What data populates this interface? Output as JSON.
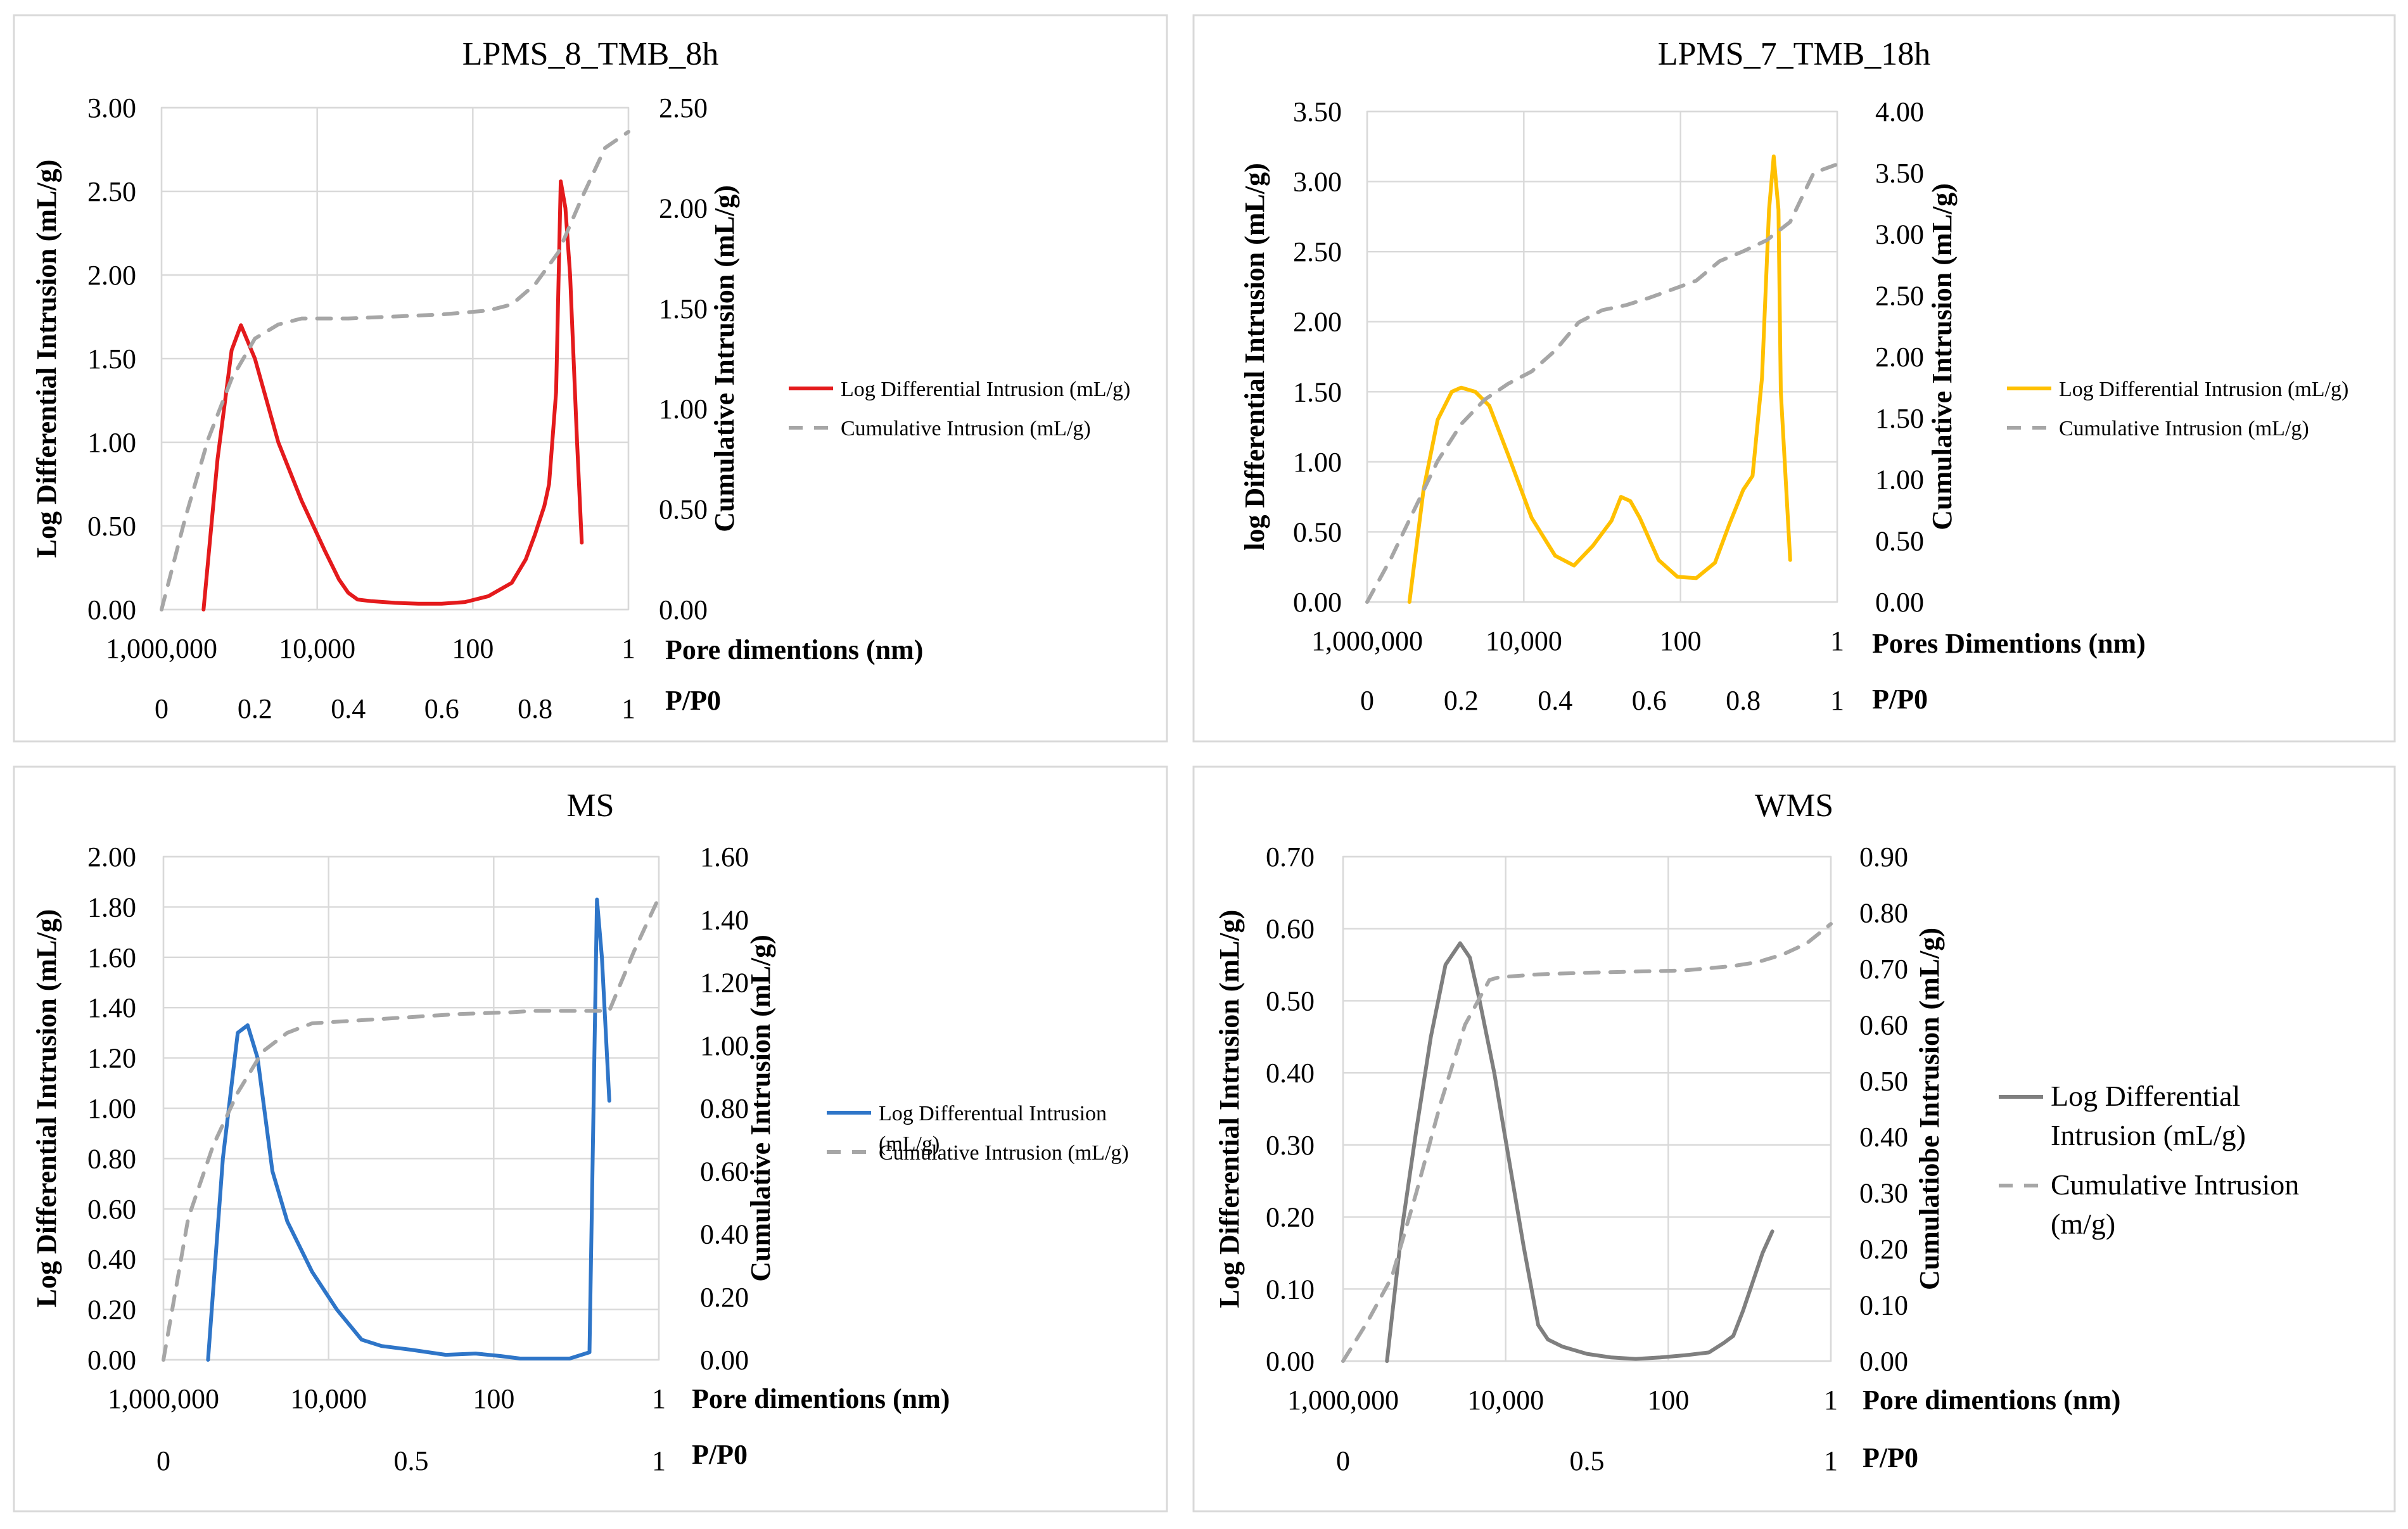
{
  "chart_data": [
    {
      "type": "line",
      "title": "LPMS_8_TMB_8h",
      "ylabel": "Log Differential Intrusion (mL/g)",
      "y2label": "Cumulative Intrusion (mL/g)",
      "xlabel_top": "Pore dimentions (nm)",
      "xlabel_bottom": "P/P0",
      "ylim": [
        0,
        3.0
      ],
      "y2lim": [
        0,
        2.5
      ],
      "y_ticks": [
        "0.00",
        "0.50",
        "1.00",
        "1.50",
        "2.00",
        "2.50",
        "3.00"
      ],
      "y2_ticks": [
        "0.00",
        "0.50",
        "1.00",
        "1.50",
        "2.00",
        "2.50"
      ],
      "x_top_ticks": [
        "1,000,000",
        "10,000",
        "100",
        "1"
      ],
      "x_bottom_ticks": [
        "0",
        "0.2",
        "0.4",
        "0.6",
        "0.8",
        "1"
      ],
      "x_bottom_positions": [
        0,
        0.2,
        0.4,
        0.6,
        0.8,
        1
      ],
      "legend_position": "right",
      "series": [
        {
          "name": "Log Differential Intrusion (mL/g)",
          "axis": "left",
          "color": "#e41a1c",
          "style": "solid",
          "x": [
            0.09,
            0.12,
            0.15,
            0.17,
            0.2,
            0.25,
            0.3,
            0.35,
            0.38,
            0.4,
            0.42,
            0.45,
            0.5,
            0.55,
            0.6,
            0.65,
            0.7,
            0.75,
            0.78,
            0.8,
            0.82,
            0.83,
            0.845,
            0.855,
            0.865,
            0.875,
            0.89,
            0.9
          ],
          "y": [
            0.0,
            0.9,
            1.55,
            1.7,
            1.5,
            1.0,
            0.65,
            0.35,
            0.18,
            0.1,
            0.06,
            0.05,
            0.04,
            0.035,
            0.035,
            0.045,
            0.08,
            0.16,
            0.3,
            0.45,
            0.62,
            0.75,
            1.3,
            2.56,
            2.4,
            2.0,
            1.0,
            0.4
          ]
        },
        {
          "name": "Cumulative Intrusion (mL/g)",
          "axis": "right",
          "color": "#a6a6a6",
          "style": "dashed",
          "x": [
            0.0,
            0.05,
            0.1,
            0.15,
            0.2,
            0.25,
            0.3,
            0.35,
            0.4,
            0.5,
            0.6,
            0.7,
            0.75,
            0.8,
            0.85,
            0.9,
            0.95,
            1.0
          ],
          "y": [
            0.0,
            0.45,
            0.85,
            1.15,
            1.35,
            1.42,
            1.45,
            1.45,
            1.45,
            1.46,
            1.47,
            1.49,
            1.52,
            1.62,
            1.78,
            2.05,
            2.3,
            2.38
          ]
        }
      ]
    },
    {
      "type": "line",
      "title": "LPMS_7_TMB_18h",
      "ylabel": "log Differential Intrusion (mL/g)",
      "y2label": "Cumulative Intrusion (mL/g)",
      "xlabel_top": "Pores Dimentions (nm)",
      "xlabel_bottom": "P/P0",
      "ylim": [
        0,
        3.5
      ],
      "y2lim": [
        0,
        4.0
      ],
      "y_ticks": [
        "0.00",
        "0.50",
        "1.00",
        "1.50",
        "2.00",
        "2.50",
        "3.00",
        "3.50"
      ],
      "y2_ticks": [
        "0.00",
        "0.50",
        "1.00",
        "1.50",
        "2.00",
        "2.50",
        "3.00",
        "3.50",
        "4.00"
      ],
      "x_top_ticks": [
        "1,000,000",
        "10,000",
        "100",
        "1"
      ],
      "x_bottom_ticks": [
        "0",
        "0.2",
        "0.4",
        "0.6",
        "0.8",
        "1"
      ],
      "x_bottom_positions": [
        0,
        0.2,
        0.4,
        0.6,
        0.8,
        1
      ],
      "legend_position": "right",
      "series": [
        {
          "name": "Log Differential Intrusion (mL/g)",
          "axis": "left",
          "color": "#ffc000",
          "style": "solid",
          "x": [
            0.09,
            0.12,
            0.15,
            0.18,
            0.2,
            0.23,
            0.26,
            0.3,
            0.35,
            0.4,
            0.44,
            0.48,
            0.52,
            0.54,
            0.56,
            0.58,
            0.62,
            0.66,
            0.7,
            0.74,
            0.77,
            0.8,
            0.82,
            0.84,
            0.855,
            0.865,
            0.875,
            0.88,
            0.9
          ],
          "y": [
            0.0,
            0.8,
            1.3,
            1.5,
            1.53,
            1.5,
            1.4,
            1.05,
            0.6,
            0.33,
            0.26,
            0.4,
            0.58,
            0.75,
            0.72,
            0.6,
            0.3,
            0.18,
            0.17,
            0.28,
            0.55,
            0.8,
            0.9,
            1.6,
            2.8,
            3.18,
            2.8,
            1.5,
            0.3
          ]
        },
        {
          "name": "Cumulative Intrusion (mL/g)",
          "axis": "right",
          "color": "#a6a6a6",
          "style": "dashed",
          "x": [
            0.0,
            0.05,
            0.1,
            0.15,
            0.2,
            0.25,
            0.3,
            0.35,
            0.4,
            0.45,
            0.5,
            0.55,
            0.6,
            0.65,
            0.7,
            0.75,
            0.8,
            0.85,
            0.9,
            0.95,
            1.0
          ],
          "y": [
            0.0,
            0.35,
            0.75,
            1.15,
            1.45,
            1.65,
            1.78,
            1.88,
            2.05,
            2.28,
            2.38,
            2.42,
            2.48,
            2.55,
            2.62,
            2.78,
            2.86,
            2.95,
            3.1,
            3.5,
            3.57
          ]
        }
      ]
    },
    {
      "type": "line",
      "title": "MS",
      "ylabel": "Log Differential Intrusion (mL/g)",
      "y2label": "Cumulative Intrusion (mL/g)",
      "xlabel_top": "Pore dimentions (nm)",
      "xlabel_bottom": "P/P0",
      "ylim": [
        0,
        2.0
      ],
      "y2lim": [
        0,
        1.6
      ],
      "y_ticks": [
        "0.00",
        "0.20",
        "0.40",
        "0.60",
        "0.80",
        "1.00",
        "1.20",
        "1.40",
        "1.60",
        "1.80",
        "2.00"
      ],
      "y2_ticks": [
        "0.00",
        "0.20",
        "0.40",
        "0.60",
        "0.80",
        "1.00",
        "1.20",
        "1.40",
        "1.60"
      ],
      "x_top_ticks": [
        "1,000,000",
        "10,000",
        "100",
        "1"
      ],
      "x_bottom_ticks": [
        "0",
        "0.5",
        "1"
      ],
      "x_bottom_positions": [
        0,
        0.5,
        1
      ],
      "legend_position": "right",
      "series": [
        {
          "name": "Log Differentual Intrusion (mL/g)",
          "axis": "left",
          "color": "#2e75c8",
          "style": "solid",
          "x": [
            0.09,
            0.12,
            0.15,
            0.17,
            0.19,
            0.22,
            0.25,
            0.3,
            0.35,
            0.4,
            0.44,
            0.5,
            0.57,
            0.63,
            0.68,
            0.72,
            0.75,
            0.82,
            0.86,
            0.875,
            0.885,
            0.9
          ],
          "y": [
            0.0,
            0.8,
            1.3,
            1.33,
            1.2,
            0.75,
            0.55,
            0.35,
            0.2,
            0.08,
            0.055,
            0.04,
            0.02,
            0.025,
            0.015,
            0.005,
            0.005,
            0.005,
            0.03,
            1.83,
            1.6,
            1.03
          ]
        },
        {
          "name": "Cumulative Intrusion (mL/g)",
          "axis": "right",
          "color": "#a6a6a6",
          "style": "dashed",
          "x": [
            0.0,
            0.05,
            0.1,
            0.15,
            0.2,
            0.25,
            0.3,
            0.35,
            0.4,
            0.5,
            0.6,
            0.7,
            0.75,
            0.8,
            0.85,
            0.9,
            0.95,
            1.0
          ],
          "y": [
            0.0,
            0.45,
            0.68,
            0.85,
            0.98,
            1.04,
            1.07,
            1.075,
            1.08,
            1.09,
            1.1,
            1.105,
            1.11,
            1.11,
            1.11,
            1.11,
            1.3,
            1.47
          ]
        }
      ]
    },
    {
      "type": "line",
      "title": "WMS",
      "ylabel": "Log Differential Intrusion (mL/g)",
      "y2label": "Cumulatiobe Intrusion (mL/g)",
      "xlabel_top": "Pore dimentions (nm)",
      "xlabel_bottom": "P/P0",
      "ylim": [
        0,
        0.7
      ],
      "y2lim": [
        0,
        0.9
      ],
      "y_ticks": [
        "0.00",
        "0.10",
        "0.20",
        "0.30",
        "0.40",
        "0.50",
        "0.60",
        "0.70"
      ],
      "y2_ticks": [
        "0.00",
        "0.10",
        "0.20",
        "0.30",
        "0.40",
        "0.50",
        "0.60",
        "0.70",
        "0.80",
        "0.90"
      ],
      "x_top_ticks": [
        "1,000,000",
        "10,000",
        "100",
        "1"
      ],
      "x_bottom_ticks": [
        "0",
        "0.5",
        "1"
      ],
      "x_bottom_positions": [
        0,
        0.5,
        1
      ],
      "legend_position": "right",
      "series": [
        {
          "name": "Log Differential Intrusion (mL/g)",
          "axis": "left",
          "color": "#7f7f7f",
          "style": "solid",
          "x": [
            0.09,
            0.12,
            0.15,
            0.18,
            0.21,
            0.24,
            0.26,
            0.28,
            0.31,
            0.34,
            0.37,
            0.4,
            0.42,
            0.45,
            0.5,
            0.55,
            0.6,
            0.65,
            0.7,
            0.75,
            0.78,
            0.8,
            0.82,
            0.84,
            0.86,
            0.88
          ],
          "y": [
            0.0,
            0.18,
            0.32,
            0.45,
            0.55,
            0.58,
            0.56,
            0.5,
            0.4,
            0.28,
            0.16,
            0.05,
            0.03,
            0.02,
            0.01,
            0.005,
            0.003,
            0.005,
            0.008,
            0.012,
            0.025,
            0.035,
            0.07,
            0.11,
            0.15,
            0.18
          ]
        },
        {
          "name": "Cumulative Intrusion (m/g)",
          "axis": "right",
          "color": "#a6a6a6",
          "style": "dashed",
          "x": [
            0.0,
            0.05,
            0.1,
            0.15,
            0.2,
            0.25,
            0.3,
            0.32,
            0.4,
            0.5,
            0.6,
            0.7,
            0.8,
            0.85,
            0.9,
            0.95,
            1.0
          ],
          "y": [
            0.0,
            0.07,
            0.15,
            0.3,
            0.46,
            0.6,
            0.68,
            0.685,
            0.69,
            0.693,
            0.695,
            0.697,
            0.705,
            0.712,
            0.725,
            0.745,
            0.78
          ]
        }
      ]
    }
  ]
}
